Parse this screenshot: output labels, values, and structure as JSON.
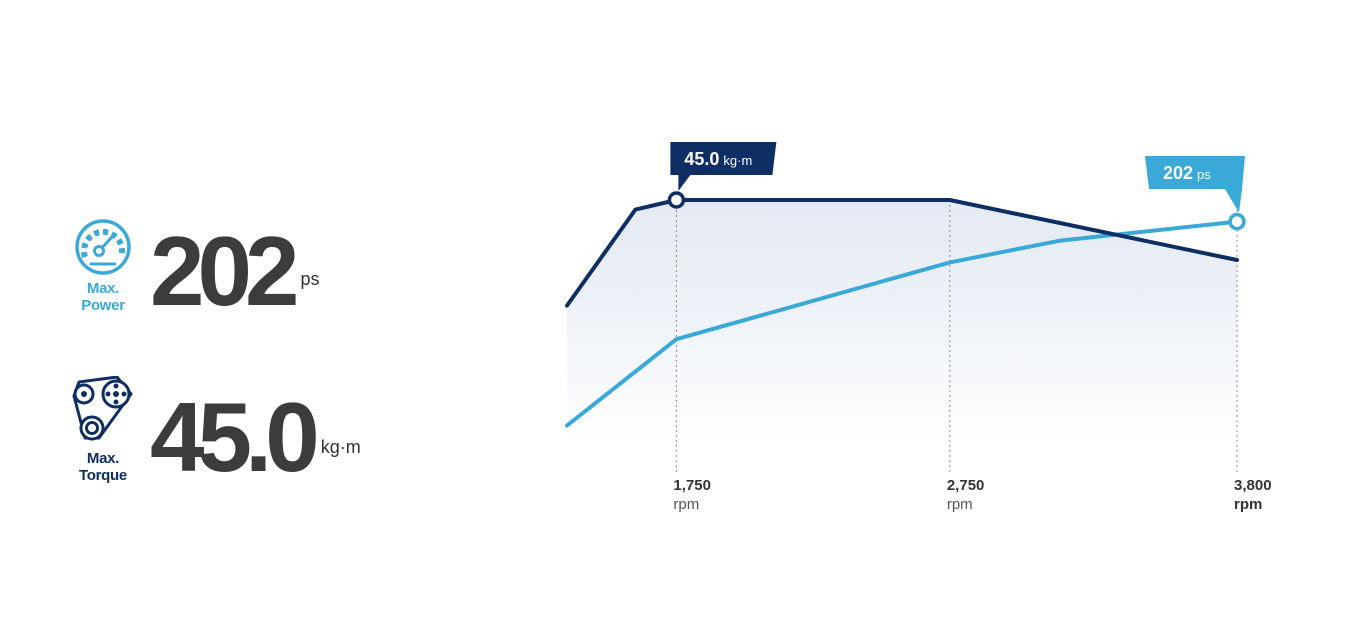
{
  "colors": {
    "power": "#3aa9d8",
    "torque": "#0f2e63",
    "value_text": "#3c3c3c",
    "fill_top": "#dbe3ef",
    "fill_bottom": "#ffffff"
  },
  "power_stat": {
    "icon": "speedometer-icon",
    "caption_line1": "Max.",
    "caption_line2": "Power",
    "value": "202",
    "unit": "ps"
  },
  "torque_stat": {
    "icon": "engine-belt-icon",
    "caption_line1": "Max.",
    "caption_line2": "Torque",
    "value": "45.0",
    "unit": "kg·m"
  },
  "chart_data": {
    "type": "line",
    "xlim": [
      1350,
      3800
    ],
    "grid": false,
    "ticks": [
      {
        "x": 1750,
        "label": "1,750",
        "unit": "rpm",
        "bold": false
      },
      {
        "x": 2750,
        "label": "2,750",
        "unit": "rpm",
        "bold": false
      },
      {
        "x": 3800,
        "label": "3,800",
        "unit": "rpm",
        "bold": true
      }
    ],
    "series": [
      {
        "name": "Max. Torque",
        "color": "torque",
        "points": [
          [
            1350,
            0.56
          ],
          [
            1600,
            0.96
          ],
          [
            1750,
            1.0
          ],
          [
            2750,
            1.0
          ],
          [
            3800,
            0.75
          ]
        ],
        "peak_x": 1750,
        "label_value": "45.0",
        "label_unit": "kg·m"
      },
      {
        "name": "Max. Power",
        "color": "power",
        "points": [
          [
            1350,
            0.06
          ],
          [
            1750,
            0.42
          ],
          [
            2750,
            0.74
          ],
          [
            3150,
            0.83
          ],
          [
            3800,
            0.91
          ]
        ],
        "peak_x": 3800,
        "label_value": "202",
        "label_unit": "ps"
      }
    ]
  }
}
